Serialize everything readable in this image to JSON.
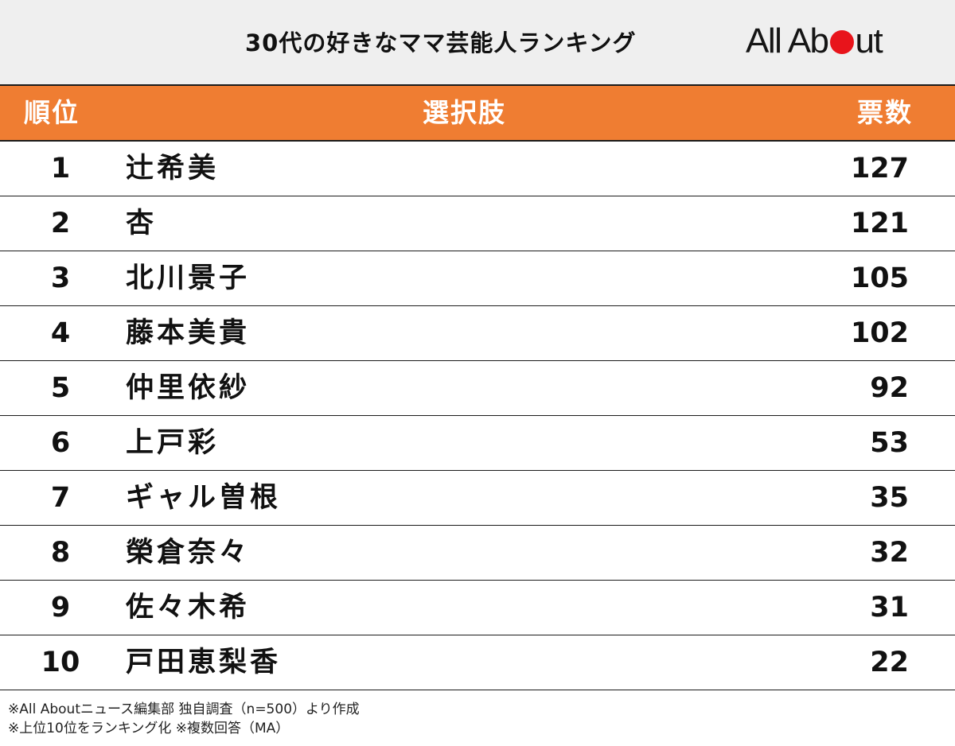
{
  "title": "30代の好きなママ芸能人ランキング",
  "logo": {
    "text_before_dot": "All Ab",
    "text_after_dot": "ut",
    "dot_color": "#e8141b"
  },
  "colors": {
    "header_bg": "#ef7d32",
    "title_band_bg": "#efefef"
  },
  "header": {
    "rank": "順位",
    "choice": "選択肢",
    "votes": "票数"
  },
  "chart_data": {
    "type": "table",
    "title": "30代の好きなママ芸能人ランキング",
    "columns": [
      "順位",
      "選択肢",
      "票数"
    ],
    "rows": [
      {
        "rank": "1",
        "name": "辻希美",
        "votes": "127"
      },
      {
        "rank": "2",
        "name": "杏",
        "votes": "121"
      },
      {
        "rank": "3",
        "name": "北川景子",
        "votes": "105"
      },
      {
        "rank": "4",
        "name": "藤本美貴",
        "votes": "102"
      },
      {
        "rank": "5",
        "name": "仲里依紗",
        "votes": "92"
      },
      {
        "rank": "6",
        "name": "上戸彩",
        "votes": "53"
      },
      {
        "rank": "7",
        "name": "ギャル曽根",
        "votes": "35"
      },
      {
        "rank": "8",
        "name": "榮倉奈々",
        "votes": "32"
      },
      {
        "rank": "9",
        "name": "佐々木希",
        "votes": "31"
      },
      {
        "rank": "10",
        "name": "戸田恵梨香",
        "votes": "22"
      }
    ]
  },
  "notes": [
    "※All Aboutニュース編集部 独自調査（n=500）より作成",
    "※上位10位をランキング化 ※複数回答（MA）"
  ]
}
